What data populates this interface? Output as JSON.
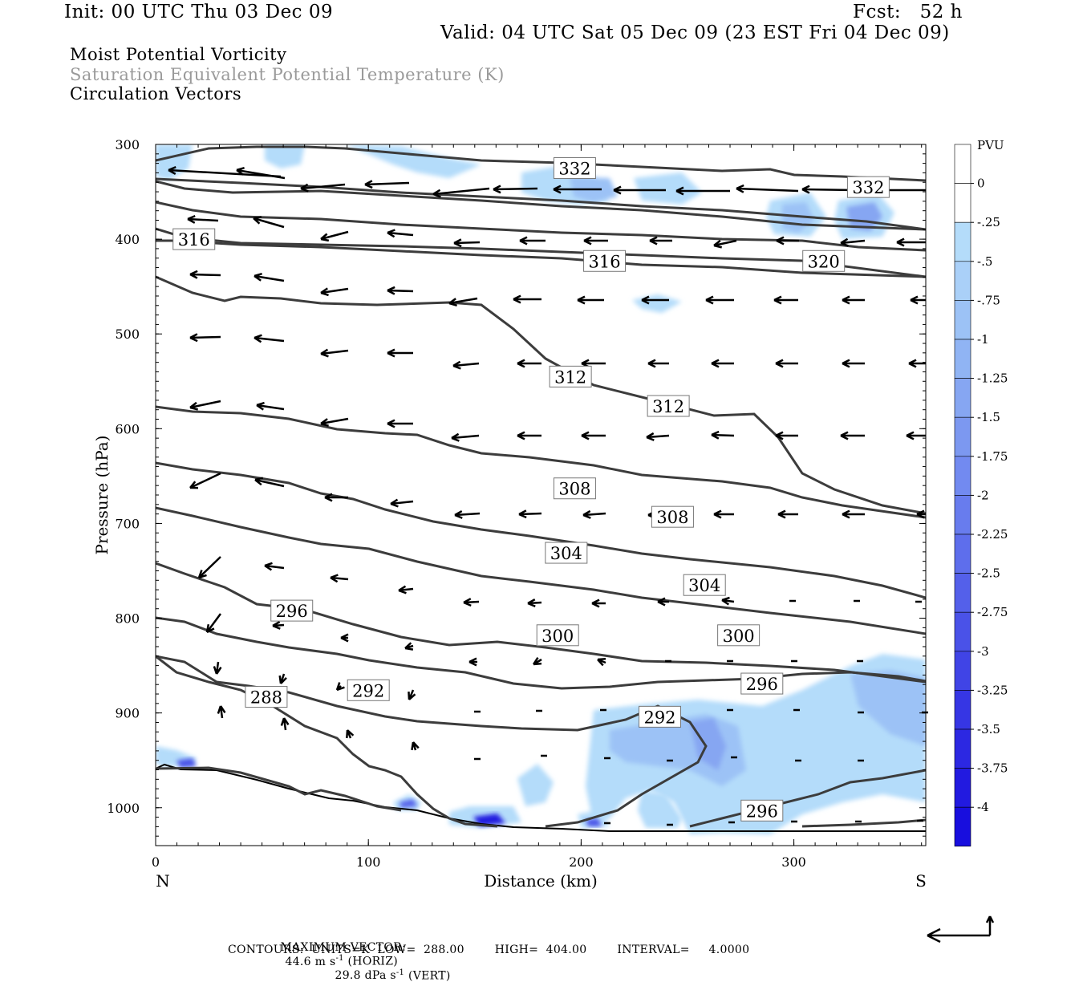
{
  "header": {
    "init": "Init: 00 UTC Thu 03 Dec 09",
    "fcst": "Fcst:   52 h",
    "valid": "Valid: 04 UTC Sat 05 Dec 09 (23 EST Fri 04 Dec 09)",
    "field1": "Moist Potential Vorticity",
    "field2": "Saturation Equivalent Potential Temperature (K)",
    "field3": "Circulation Vectors"
  },
  "footer": {
    "max_vector_label": "MAXIMUM VECTOR:",
    "max_horiz": "44.6 m s",
    "horiz_exp": "-1",
    "horiz_suffix": " (HORIZ)",
    "max_vert": "29.8 dPa s",
    "vert_exp": "-1",
    "vert_suffix": " (VERT)",
    "contours": "CONTOURS:  UNITS=K  LOW=  288.00        HIGH=  404.00        INTERVAL=     4.0000"
  },
  "colors": {
    "contour": "#3c3c3c",
    "pv_levels": [
      "#ffffff",
      "#ffffff",
      "#b4dcfa",
      "#aad0f8",
      "#9cc2f6",
      "#90b4f4",
      "#86a6f2",
      "#7c98f0",
      "#728af0",
      "#687cee",
      "#5e6eec",
      "#5460ea",
      "#4a52e8",
      "#4044e6",
      "#3636e4",
      "#2c28e2",
      "#221ae0",
      "#180ede"
    ]
  },
  "chart_data": {
    "type": "cross-section",
    "xlabel": "Distance (km)",
    "ylabel": "Pressure (hPa)",
    "xlim": [
      0,
      362
    ],
    "ylim": [
      1040,
      300
    ],
    "x_ticks": [
      "0",
      "100",
      "200",
      "300"
    ],
    "x_tick_values": [
      0,
      100,
      200,
      300
    ],
    "y_ticks": [
      "300",
      "400",
      "500",
      "600",
      "700",
      "800",
      "900",
      "1000"
    ],
    "y_tick_values": [
      300,
      400,
      500,
      600,
      700,
      800,
      900,
      1000
    ],
    "left_end_label": "N",
    "right_end_label": "S",
    "colorbar": {
      "units": "PVU",
      "labels": [
        "0",
        "-.25",
        "-.5",
        "-.75",
        "-1",
        "-1.25",
        "-1.5",
        "-1.75",
        "-2",
        "-2.25",
        "-2.5",
        "-2.75",
        "-3",
        "-3.25",
        "-3.5",
        "-3.75",
        "-4"
      ]
    },
    "contour_labels": [
      {
        "text": "332",
        "x": 197,
        "p": 325
      },
      {
        "text": "332",
        "x": 335,
        "p": 345
      },
      {
        "text": "316",
        "x": 18,
        "p": 400
      },
      {
        "text": "316",
        "x": 211,
        "p": 423
      },
      {
        "text": "320",
        "x": 314,
        "p": 423
      },
      {
        "text": "312",
        "x": 195,
        "p": 545
      },
      {
        "text": "312",
        "x": 241,
        "p": 576
      },
      {
        "text": "308",
        "x": 197,
        "p": 663
      },
      {
        "text": "308",
        "x": 243,
        "p": 693
      },
      {
        "text": "304",
        "x": 193,
        "p": 731
      },
      {
        "text": "304",
        "x": 258,
        "p": 765
      },
      {
        "text": "296",
        "x": 64,
        "p": 792
      },
      {
        "text": "300",
        "x": 189,
        "p": 818
      },
      {
        "text": "300",
        "x": 274,
        "p": 818
      },
      {
        "text": "296",
        "x": 285,
        "p": 869
      },
      {
        "text": "288",
        "x": 52,
        "p": 883
      },
      {
        "text": "292",
        "x": 100,
        "p": 876
      },
      {
        "text": "292",
        "x": 237,
        "p": 904
      },
      {
        "text": "296",
        "x": 285,
        "p": 1003
      }
    ]
  }
}
